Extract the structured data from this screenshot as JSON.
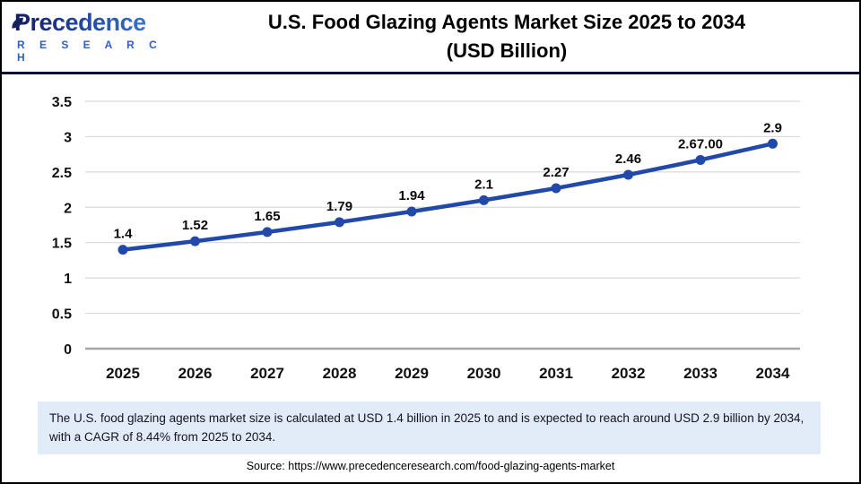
{
  "header": {
    "logo": {
      "brand": "Precedence",
      "sub": "R E S E A R C H"
    },
    "title_line1": "U.S. Food Glazing Agents Market Size 2025 to 2034",
    "title_line2": "(USD Billion)"
  },
  "chart_data": {
    "type": "line",
    "title": "U.S. Food Glazing Agents Market Size 2025 to 2034 (USD Billion)",
    "categories": [
      "2025",
      "2026",
      "2027",
      "2028",
      "2029",
      "2030",
      "2031",
      "2032",
      "2033",
      "2034"
    ],
    "values": [
      1.4,
      1.52,
      1.65,
      1.79,
      1.94,
      2.1,
      2.27,
      2.46,
      2.67,
      2.9
    ],
    "point_labels": [
      "1.4",
      "1.52",
      "1.65",
      "1.79",
      "1.94",
      "2.1",
      "2.27",
      "2.46",
      "2.67.00",
      "2.9"
    ],
    "yticks": [
      "0",
      "0.5",
      "1",
      "1.5",
      "2",
      "2.5",
      "3",
      "3.5"
    ],
    "ylim": [
      0,
      3.5
    ],
    "xlabel": "",
    "ylabel": "",
    "grid": true,
    "legend": "none",
    "line_color": "#2149A9",
    "grid_color": "#d9d9d9",
    "axis_line_color": "#a6a6a6"
  },
  "footer": {
    "note": "The U.S. food glazing agents market size is calculated at USD 1.4 billion in 2025 to and is expected to reach around USD 2.9 billion by 2034, with a CAGR of 8.44% from 2025 to 2034.",
    "source": "Source: https://www.precedenceresearch.com/food-glazing-agents-market"
  },
  "colors": {
    "header_rule": "#0b0b38",
    "note_bg": "#e2ebf8",
    "logo_dark": "#131c5e",
    "logo_light": "#3f7fd4"
  }
}
